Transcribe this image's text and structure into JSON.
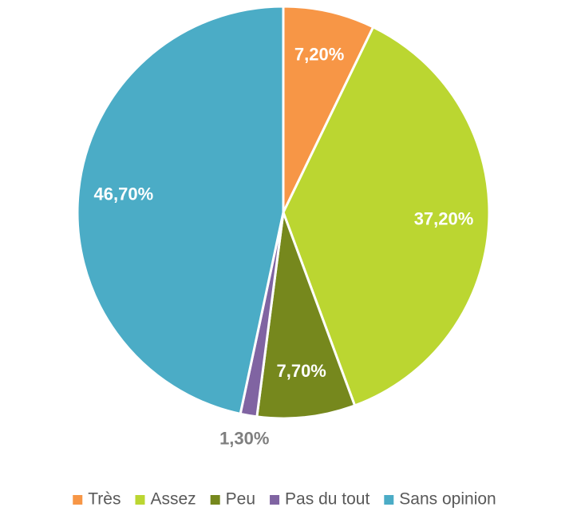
{
  "chart_data": {
    "type": "pie",
    "categories": [
      "Très",
      "Assez",
      "Peu",
      "Pas du tout",
      "Sans opinion"
    ],
    "values": [
      7.2,
      37.2,
      7.7,
      1.3,
      46.7
    ],
    "value_labels": [
      "7,20%",
      "37,20%",
      "7,70%",
      "1,30%",
      "46,70%"
    ],
    "colors": [
      "#F79646",
      "#BBD631",
      "#76881D",
      "#8064A2",
      "#4BACC6"
    ],
    "legend": "bottom"
  }
}
